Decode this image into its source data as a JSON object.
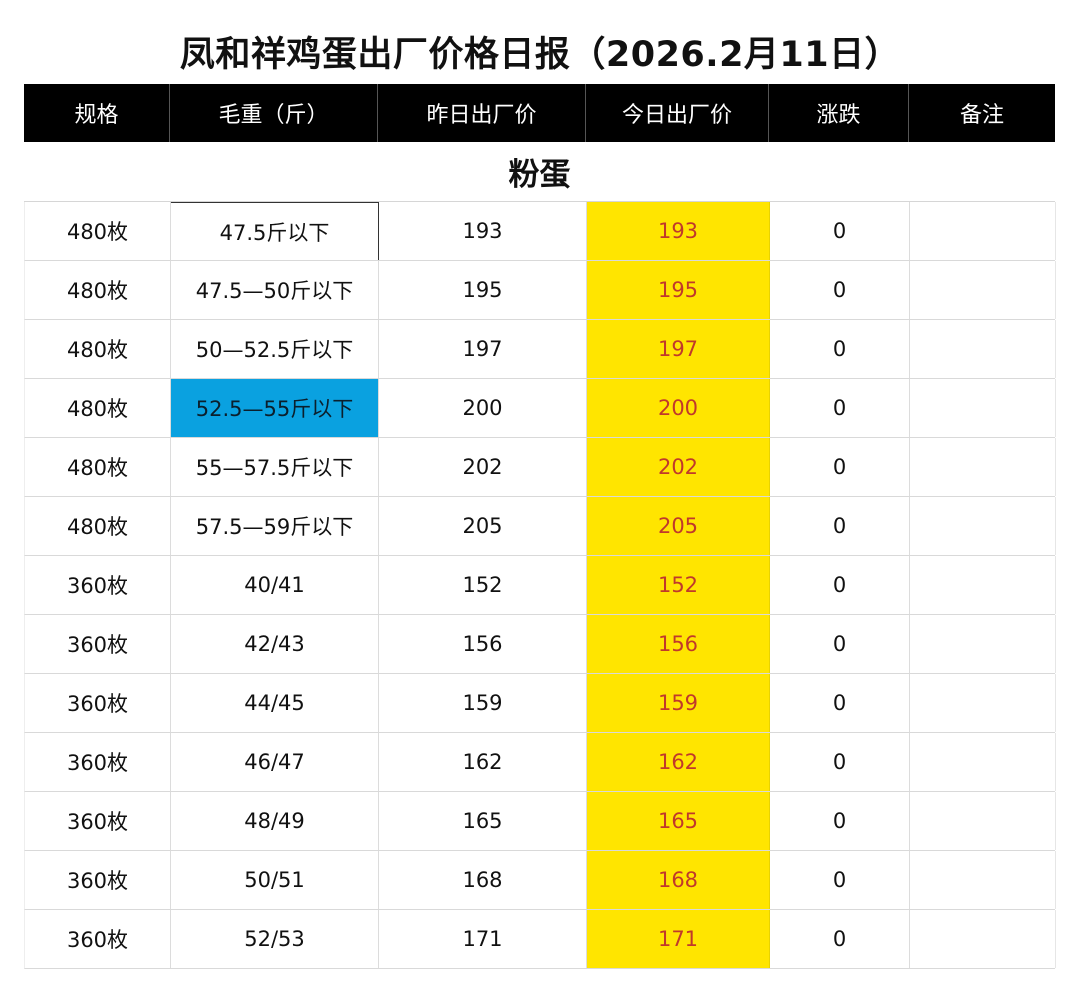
{
  "title": "凤和祥鸡蛋出厂价格日报（2026.2月11日）",
  "headers": [
    "规格",
    "毛重（斤）",
    "昨日出厂价",
    "今日出厂价",
    "涨跌",
    "备注"
  ],
  "section_label": "粉蛋",
  "colors": {
    "header_bg": "#000000",
    "today_bg": "#ffe500",
    "today_text": "#c0392b",
    "highlight_bg": "#0aa1e0"
  },
  "rows": [
    {
      "spec": "480枚",
      "weight": "47.5斤以下",
      "yesterday": "193",
      "today": "193",
      "change": "0",
      "note": ""
    },
    {
      "spec": "480枚",
      "weight": "47.5—50斤以下",
      "yesterday": "195",
      "today": "195",
      "change": "0",
      "note": ""
    },
    {
      "spec": "480枚",
      "weight": "50—52.5斤以下",
      "yesterday": "197",
      "today": "197",
      "change": "0",
      "note": ""
    },
    {
      "spec": "480枚",
      "weight": "52.5—55斤以下",
      "yesterday": "200",
      "today": "200",
      "change": "0",
      "note": ""
    },
    {
      "spec": "480枚",
      "weight": "55—57.5斤以下",
      "yesterday": "202",
      "today": "202",
      "change": "0",
      "note": ""
    },
    {
      "spec": "480枚",
      "weight": "57.5—59斤以下",
      "yesterday": "205",
      "today": "205",
      "change": "0",
      "note": ""
    },
    {
      "spec": "360枚",
      "weight": "40/41",
      "yesterday": "152",
      "today": "152",
      "change": "0",
      "note": ""
    },
    {
      "spec": "360枚",
      "weight": "42/43",
      "yesterday": "156",
      "today": "156",
      "change": "0",
      "note": ""
    },
    {
      "spec": "360枚",
      "weight": "44/45",
      "yesterday": "159",
      "today": "159",
      "change": "0",
      "note": ""
    },
    {
      "spec": "360枚",
      "weight": "46/47",
      "yesterday": "162",
      "today": "162",
      "change": "0",
      "note": ""
    },
    {
      "spec": "360枚",
      "weight": "48/49",
      "yesterday": "165",
      "today": "165",
      "change": "0",
      "note": ""
    },
    {
      "spec": "360枚",
      "weight": "50/51",
      "yesterday": "168",
      "today": "168",
      "change": "0",
      "note": ""
    },
    {
      "spec": "360枚",
      "weight": "52/53",
      "yesterday": "171",
      "today": "171",
      "change": "0",
      "note": ""
    }
  ]
}
